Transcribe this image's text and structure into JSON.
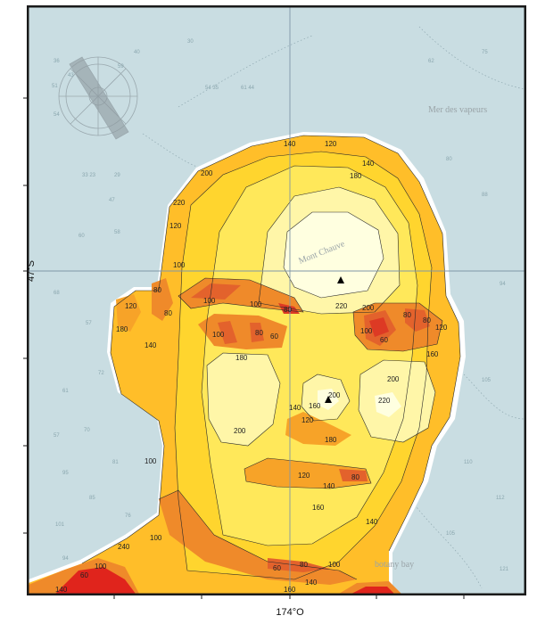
{
  "map": {
    "colors": {
      "sea": "#c9dde2",
      "frame": "#1a1a1a",
      "graticule": "#7f96a8",
      "level_220": "#ffffe0",
      "level_200": "#fff6a8",
      "level_180": "#ffe85a",
      "level_160": "#ffd52e",
      "level_140": "#ffbe29",
      "level_120": "#f7a328",
      "level_100": "#ef8a2a",
      "level_80": "#e3622c",
      "level_60": "#dd3a24",
      "level_40": "#e0241c"
    },
    "axis": {
      "latitude_label": "47°S",
      "longitude_label": "174°O"
    },
    "place_names": {
      "sea": "Mer des vapeurs",
      "summit": "Mont Chauve",
      "bay": "botany bay"
    },
    "contour_labels": {
      "c1": "140",
      "c2": "120",
      "c3": "140",
      "c4": "180",
      "c5": "200",
      "c6": "220",
      "c7": "120",
      "c8": "100",
      "c9": "80",
      "c10": "80",
      "c11": "120",
      "c12": "180",
      "c13": "140",
      "c14": "100",
      "c15": "100",
      "c16": "80",
      "c17": "100",
      "c18": "80",
      "c19": "60",
      "c20": "220",
      "c21": "200",
      "c22": "100",
      "c23": "80",
      "c24": "60",
      "c25": "80",
      "c26": "120",
      "c27": "160",
      "c28": "180",
      "c29": "200",
      "c30": "220",
      "c31": "200",
      "c32": "140",
      "c33": "160",
      "c34": "120",
      "c35": "180",
      "c36": "120",
      "c37": "80",
      "c38": "140",
      "c39": "160",
      "c40": "140",
      "c41": "100",
      "c42": "60",
      "c43": "80",
      "c44": "100",
      "c45": "140",
      "c46": "160",
      "c47": "240",
      "c48": "100",
      "c49": "60",
      "c50": "140",
      "c51": "200",
      "c52": "100"
    },
    "soundings": {
      "s1": "36",
      "s2": "43",
      "s3": "51",
      "s4": "54",
      "s5": "40",
      "s6": "59",
      "s7": "30",
      "s8": "54 35",
      "s9": "61 44",
      "s10": "33 23",
      "s11": "29",
      "s12": "47",
      "s13": "60",
      "s14": "58",
      "s15": "68",
      "s16": "57",
      "s17": "61",
      "s18": "72",
      "s19": "57",
      "s20": "70",
      "s21": "81",
      "s22": "95",
      "s23": "85",
      "s24": "101",
      "s25": "76",
      "s26": "94",
      "s27": "80",
      "s28": "88",
      "s29": "94",
      "s30": "105",
      "s31": "110",
      "s32": "112",
      "s33": "62",
      "s34": "75",
      "s35": "105",
      "s36": "121"
    }
  }
}
